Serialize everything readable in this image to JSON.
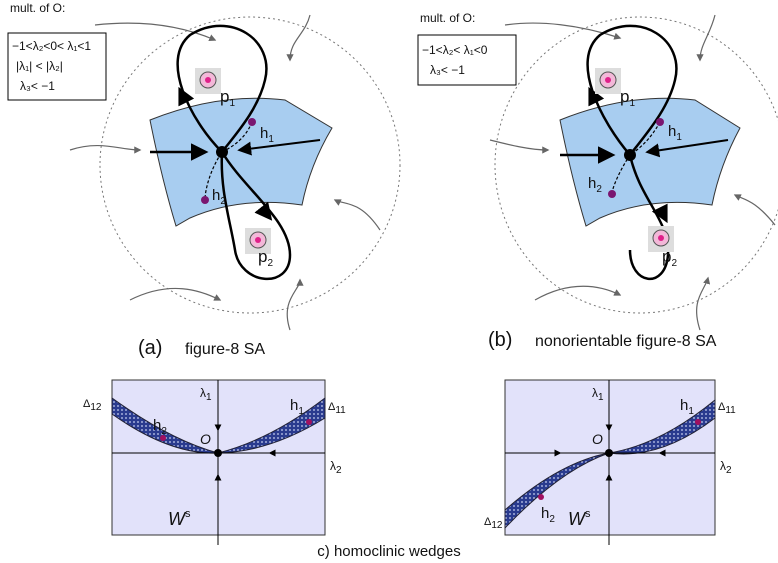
{
  "panels": [
    {
      "box": {
        "title": "mult. of O:",
        "lines": [
          "−1<λ₂<0< λ₁<1",
          "|λ₁| < |λ₂|",
          "λ₃< −1"
        ]
      },
      "labels": [
        {
          "base": "p",
          "sub": "1"
        },
        {
          "base": "h",
          "sub": "1"
        },
        {
          "base": "h",
          "sub": "2"
        },
        {
          "base": "p",
          "sub": "2"
        }
      ],
      "caption_letter": "(a)",
      "caption": "figure-8 SA"
    },
    {
      "box": {
        "title": "mult. of O:",
        "lines": [
          "−1<λ₂< λ₁<0",
          "λ₃< −1"
        ]
      },
      "labels": [
        {
          "base": "p",
          "sub": "1"
        },
        {
          "base": "h",
          "sub": "1"
        },
        {
          "base": "h",
          "sub": "2"
        },
        {
          "base": "p",
          "sub": "2"
        }
      ],
      "caption_letter": "(b)",
      "caption": "nonorientable figure-8 SA"
    }
  ],
  "wedges": [
    {
      "delta_left": {
        "base": "Δ",
        "sub": "12"
      },
      "delta_right": {
        "base": "Δ",
        "sub": "11"
      },
      "lambda1": {
        "base": "λ",
        "sub": "1"
      },
      "lambda2": {
        "base": "λ",
        "sub": "2"
      },
      "h1": {
        "base": "h",
        "sub": "1"
      },
      "h2": {
        "base": "h",
        "sub": "2"
      },
      "origin": "O",
      "ws": {
        "base": "W",
        "sup": "s"
      }
    },
    {
      "delta_left": {
        "base": "Δ",
        "sub": "12"
      },
      "delta_right": {
        "base": "Δ",
        "sub": "11"
      },
      "lambda1": {
        "base": "λ",
        "sub": "1"
      },
      "lambda2": {
        "base": "λ",
        "sub": "2"
      },
      "h1": {
        "base": "h",
        "sub": "1"
      },
      "h2": {
        "base": "h",
        "sub": "2"
      },
      "origin": "O",
      "ws": {
        "base": "W",
        "sup": "s"
      }
    }
  ],
  "caption_c": "c) homoclinic wedges"
}
